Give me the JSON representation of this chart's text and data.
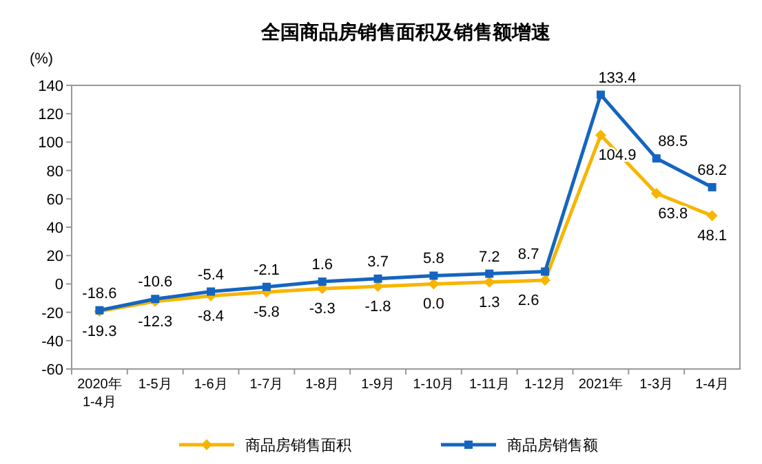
{
  "chart_data": {
    "type": "line",
    "title": "全国商品房销售面积及销售额增速",
    "ylabel": "(%)",
    "categories": [
      "2020年\n1-4月",
      "1-5月",
      "1-6月",
      "1-7月",
      "1-8月",
      "1-9月",
      "1-10月",
      "1-11月",
      "1-12月",
      "2021年",
      "1-3月",
      "1-4月"
    ],
    "series": [
      {
        "name": "商品房销售面积",
        "color": "#f7b500",
        "marker": "diamond",
        "values": [
          -19.3,
          -12.3,
          -8.4,
          -5.8,
          -3.3,
          -1.8,
          0.0,
          1.3,
          2.6,
          104.9,
          63.8,
          48.1
        ],
        "value_labels": [
          "-19.3",
          "-12.3",
          "-8.4",
          "-5.8",
          "-3.3",
          "-1.8",
          "0.0",
          "1.3",
          "2.6",
          "104.9",
          "63.8",
          "48.1"
        ]
      },
      {
        "name": "商品房销售额",
        "color": "#1565c0",
        "marker": "square",
        "values": [
          -18.6,
          -10.6,
          -5.4,
          -2.1,
          1.6,
          3.7,
          5.8,
          7.2,
          8.7,
          133.4,
          88.5,
          68.2
        ],
        "value_labels": [
          "-18.6",
          "-10.6",
          "-5.4",
          "-2.1",
          "1.6",
          "3.7",
          "5.8",
          "7.2",
          "8.7",
          "133.4",
          "88.5",
          "68.2"
        ]
      }
    ],
    "ylim": [
      -60,
      140
    ],
    "yticks": [
      -60,
      -40,
      -20,
      0,
      20,
      40,
      60,
      80,
      100,
      120,
      140
    ],
    "legend": "bottom",
    "line_style": "solid"
  }
}
